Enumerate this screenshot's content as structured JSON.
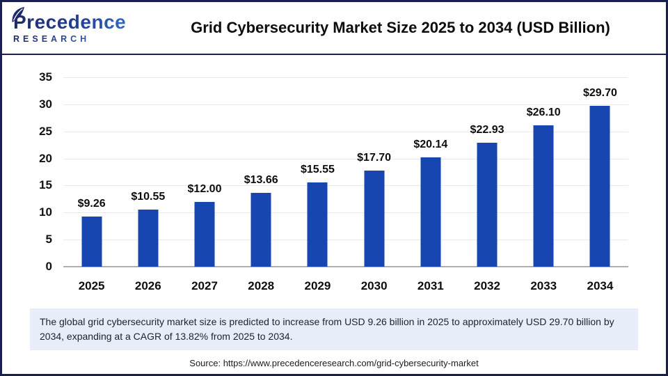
{
  "logo": {
    "name": "Precedence",
    "subtitle": "RESEARCH"
  },
  "header": {
    "title": "Grid Cybersecurity Market Size 2025 to 2034 (USD Billion)"
  },
  "chart_data": {
    "type": "bar",
    "title": "Grid Cybersecurity Market Size 2025 to 2034 (USD Billion)",
    "categories": [
      "2025",
      "2026",
      "2027",
      "2028",
      "2029",
      "2030",
      "2031",
      "2032",
      "2033",
      "2034"
    ],
    "values": [
      9.26,
      10.55,
      12.0,
      13.66,
      15.55,
      17.7,
      20.14,
      22.93,
      26.1,
      29.7
    ],
    "value_labels": [
      "$9.26",
      "$10.55",
      "$12.00",
      "$13.66",
      "$15.55",
      "$17.70",
      "$20.14",
      "$22.93",
      "$26.10",
      "$29.70"
    ],
    "xlabel": "",
    "ylabel": "",
    "ylim": [
      0,
      35
    ],
    "yticks": [
      0,
      5,
      10,
      15,
      20,
      25,
      30,
      35
    ],
    "grid": "horizontal",
    "legend": "none",
    "bar_color": "#1746b0"
  },
  "summary": {
    "text": "The global grid cybersecurity market size is predicted to increase from USD 9.26 billion in 2025 to approximately USD 29.70 billion by 2034, expanding at a CAGR of 13.82% from 2025 to 2034."
  },
  "source": {
    "text": "Source: https://www.precedenceresearch.com/grid-cybersecurity-market"
  },
  "colors": {
    "bar": "#1746b0",
    "border_navy": "#1a1f4e",
    "summary_bg": "#e7eef9",
    "gridline": "#eaeaea",
    "baseline": "#b0b0b0",
    "logo_navy": "#1e2967",
    "logo_blue": "#3a7bd5"
  }
}
